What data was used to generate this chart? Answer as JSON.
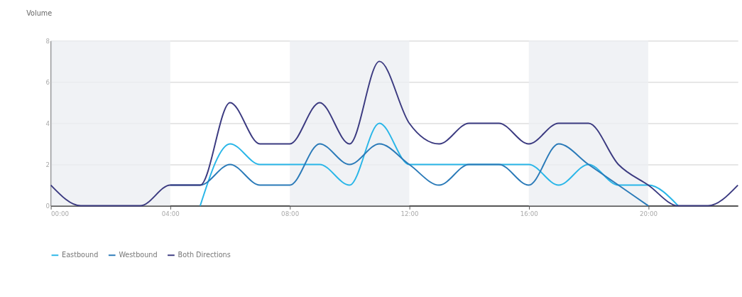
{
  "chart_data": {
    "type": "line",
    "ylabel": "Volume",
    "x": [
      0,
      1,
      2,
      3,
      4,
      5,
      6,
      7,
      8,
      9,
      10,
      11,
      12,
      13,
      14,
      15,
      16,
      17,
      18,
      19,
      20,
      21,
      22,
      23
    ],
    "series": [
      {
        "name": "Eastbound",
        "color": "#29b6e8",
        "values": [
          null,
          null,
          null,
          null,
          null,
          0,
          3,
          2,
          2,
          2,
          1,
          4,
          2,
          2,
          2,
          2,
          2,
          1,
          2,
          1,
          1,
          0,
          null,
          null
        ]
      },
      {
        "name": "Westbound",
        "color": "#2a7ab8",
        "values": [
          null,
          null,
          null,
          null,
          1,
          1,
          2,
          1,
          1,
          3,
          2,
          3,
          2,
          1,
          2,
          2,
          1,
          3,
          2,
          1,
          0,
          null,
          null,
          null
        ]
      },
      {
        "name": "Both Directions",
        "color": "#3b3a80",
        "values": [
          1,
          0,
          0,
          0,
          1,
          1,
          5,
          3,
          3,
          5,
          3,
          7,
          4,
          3,
          4,
          4,
          3,
          4,
          4,
          2,
          1,
          0,
          0,
          1
        ]
      }
    ],
    "xlim": [
      0,
      23
    ],
    "xticks": [
      {
        "value": 0,
        "label": "00:00"
      },
      {
        "value": 4,
        "label": "04:00"
      },
      {
        "value": 8,
        "label": "08:00"
      },
      {
        "value": 12,
        "label": "12:00"
      },
      {
        "value": 16,
        "label": "16:00"
      },
      {
        "value": 20,
        "label": "20:00"
      }
    ],
    "ylim": [
      0,
      8
    ],
    "yticks": [
      0,
      2,
      4,
      6,
      8
    ],
    "bands": [
      {
        "axis": "x",
        "from": 0,
        "to": 4,
        "color": "#eceff3"
      },
      {
        "axis": "x",
        "from": 8,
        "to": 12,
        "color": "#eceff3"
      },
      {
        "axis": "x",
        "from": 16,
        "to": 20,
        "color": "#eceff3"
      }
    ],
    "grid": "y",
    "legend": "bottom",
    "line_style": "solid",
    "marker": "none"
  }
}
